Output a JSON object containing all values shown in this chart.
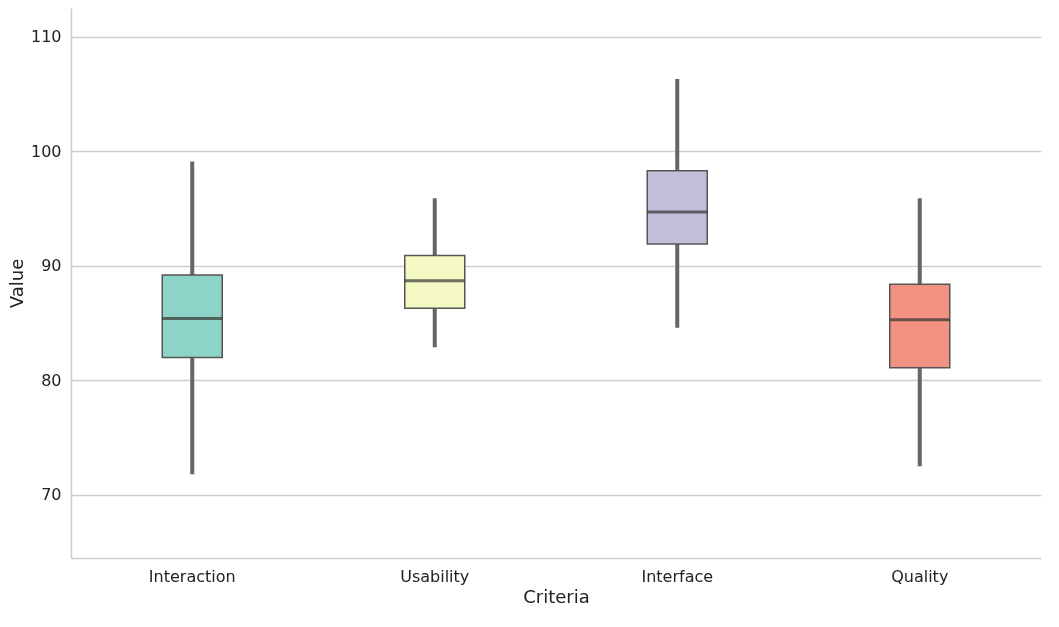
{
  "chart_data": {
    "type": "box",
    "xlabel": "Criteria",
    "ylabel": "Value",
    "categories": [
      "Interaction",
      "Usability",
      "Interface",
      "Quality"
    ],
    "colors": [
      "#8dd3c7",
      "#f4f8c2",
      "#c2bed9",
      "#f29282"
    ],
    "boxes": [
      {
        "low": 71.8,
        "q1": 82.0,
        "median": 85.4,
        "q3": 89.2,
        "high": 99.1
      },
      {
        "low": 82.9,
        "q1": 86.3,
        "median": 88.7,
        "q3": 90.9,
        "high": 95.9
      },
      {
        "low": 84.6,
        "q1": 91.9,
        "median": 94.7,
        "q3": 98.3,
        "high": 106.3
      },
      {
        "low": 72.5,
        "q1": 81.1,
        "median": 85.3,
        "q3": 88.4,
        "high": 95.9
      }
    ],
    "ylim": [
      64.5,
      112.5
    ],
    "yticks": [
      70,
      80,
      90,
      100,
      110
    ],
    "grid": "y",
    "legend": false
  }
}
